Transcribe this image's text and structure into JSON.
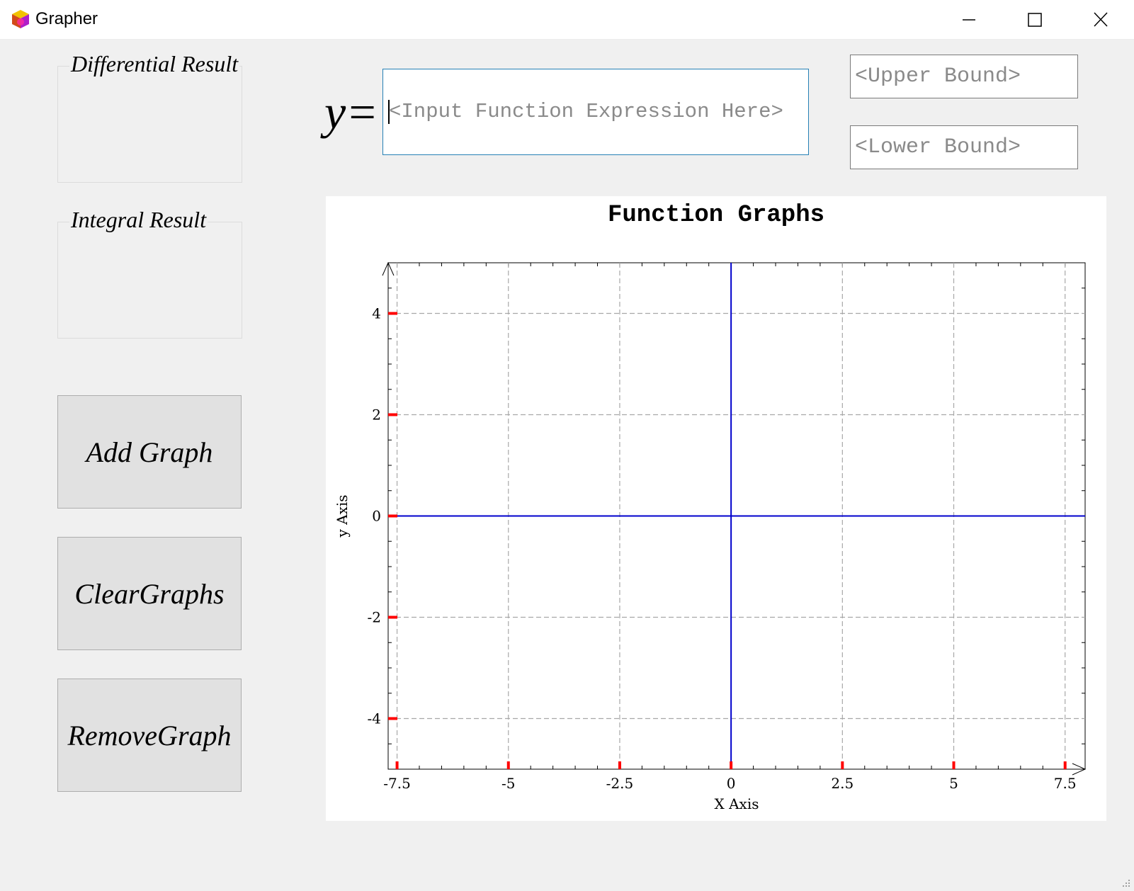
{
  "window": {
    "title": "Grapher",
    "icon": "cube-app-icon"
  },
  "controls": {
    "minimize": "minimize-icon",
    "maximize": "maximize-icon",
    "close": "close-icon"
  },
  "sidebar": {
    "differential_label": "Differential Result",
    "integral_label": "Integral Result",
    "add_button": "Add Graph",
    "clear_button": "ClearGraphs",
    "remove_button": "RemoveGraph"
  },
  "expression": {
    "prefix": "y=",
    "placeholder": "<Input Function Expression Here>",
    "value": ""
  },
  "bounds": {
    "upper_placeholder": "<Upper Bound>",
    "lower_placeholder": "<Lower Bound>"
  },
  "chart_data": {
    "type": "line",
    "title": "Function Graphs",
    "xlabel": "X Axis",
    "ylabel": "y Axis",
    "xlim": [
      -7.7,
      7.95
    ],
    "ylim": [
      -5,
      5
    ],
    "xticks": [
      -7.5,
      -5,
      -2.5,
      0,
      2.5,
      5,
      7.5
    ],
    "xtick_labels": [
      "-7.5",
      "-5",
      "-2.5",
      "0",
      "2.5",
      "5",
      "7.5"
    ],
    "yticks": [
      4,
      2,
      0,
      -2,
      -4
    ],
    "ytick_labels": [
      "4",
      "2",
      "0",
      "-2",
      "-4"
    ],
    "grid": true,
    "series": [],
    "reference_lines": [
      {
        "orientation": "horizontal",
        "value": 0,
        "color": "#0000cc"
      },
      {
        "orientation": "vertical",
        "value": 0,
        "color": "#0000cc"
      }
    ],
    "tick_mark_color": "#ff0000",
    "grid_color": "#a8a8a8"
  }
}
